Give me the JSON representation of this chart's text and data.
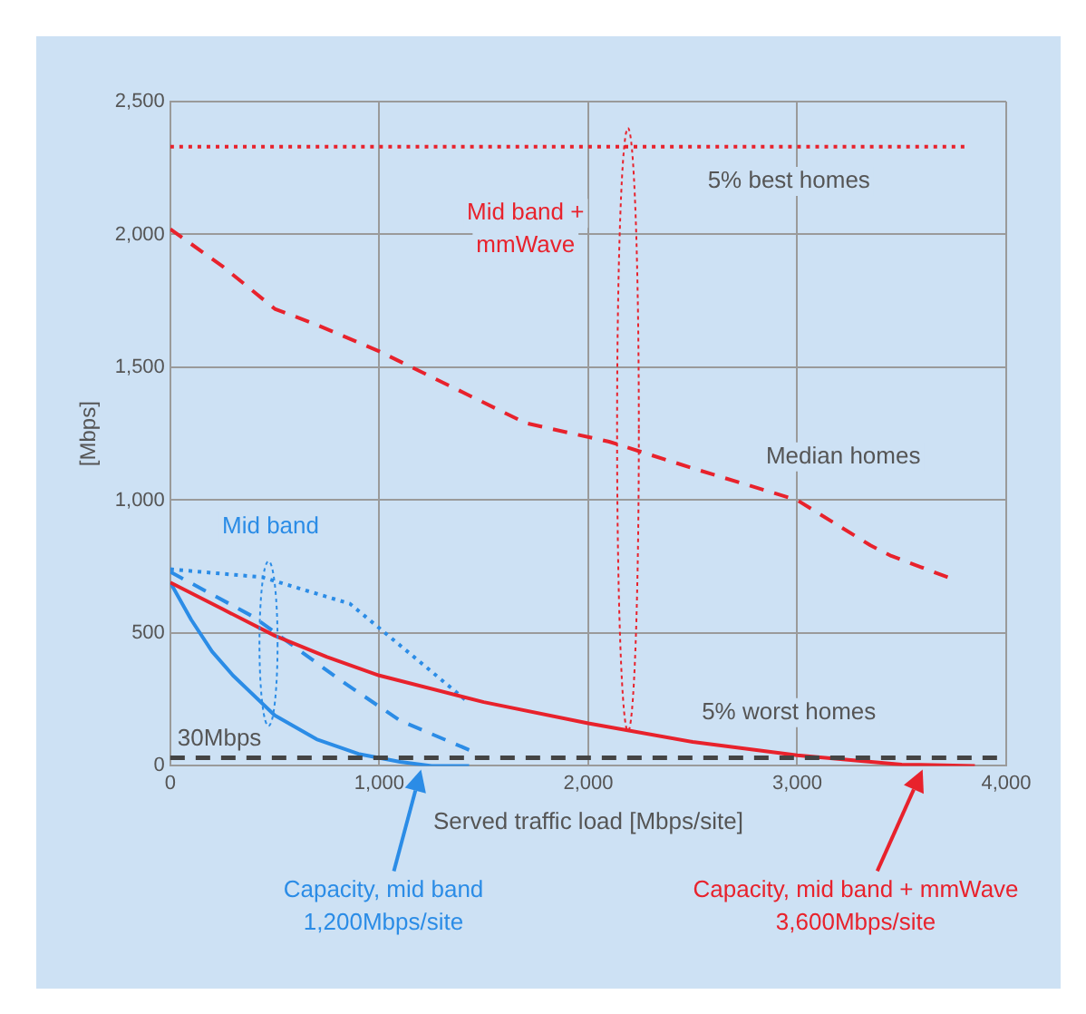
{
  "chart_data": {
    "type": "line",
    "xlabel": "Served traffic load [Mbps/site]",
    "ylabel": "[Mbps]",
    "xlim": [
      0,
      4000
    ],
    "xticks": [
      0,
      {
        "value": 1000,
        "label": "1,000"
      },
      {
        "value": 2000,
        "label": "2,000"
      },
      {
        "value": 3000,
        "label": "3,000"
      },
      {
        "value": 4000,
        "label": "4,000"
      }
    ],
    "ylim": [
      0,
      2500
    ],
    "yticks": [
      0,
      500,
      {
        "value": 1000,
        "label": "1,000"
      },
      {
        "value": 1500,
        "label": "1,500"
      },
      {
        "value": 2000,
        "label": "2,000"
      },
      {
        "value": 2500,
        "label": "2,500"
      }
    ],
    "grid": true,
    "legend": false,
    "marker": "none",
    "series": [
      {
        "color": "#e8222c",
        "line_style": "dotted",
        "x": [
          0,
          3800
        ],
        "values": [
          2330,
          2330
        ]
      },
      {
        "color": "#e8222c",
        "line_style": "dashed",
        "x": [
          0,
          250,
          500,
          700,
          1000,
          1700,
          2100,
          2500,
          3000,
          3350,
          3450,
          3720
        ],
        "values": [
          2020,
          1880,
          1720,
          1660,
          1560,
          1290,
          1220,
          1120,
          1000,
          830,
          790,
          710
        ]
      },
      {
        "color": "#e8222c",
        "line_style": "solid",
        "x": [
          0,
          250,
          500,
          750,
          1000,
          1500,
          2000,
          2500,
          3000,
          3500,
          3850
        ],
        "values": [
          690,
          590,
          490,
          410,
          340,
          240,
          160,
          90,
          40,
          5,
          0
        ]
      },
      {
        "color": "#2b8ce6",
        "line_style": "dotted",
        "x": [
          0,
          440,
          860,
          1120,
          1410
        ],
        "values": [
          740,
          710,
          610,
          440,
          250
        ]
      },
      {
        "color": "#2b8ce6",
        "line_style": "dashed",
        "x": [
          0,
          400,
          800,
          1100,
          1430
        ],
        "values": [
          730,
          560,
          330,
          170,
          60
        ]
      },
      {
        "color": "#2b8ce6",
        "line_style": "solid",
        "x": [
          0,
          100,
          200,
          300,
          500,
          700,
          900,
          1100,
          1250,
          1430
        ],
        "values": [
          690,
          550,
          430,
          340,
          190,
          100,
          45,
          15,
          0,
          0
        ]
      }
    ],
    "ref_lines": [
      {
        "axis": "y",
        "value": 30,
        "label": "30Mbps",
        "color": "#444444",
        "line_style": "dashed"
      }
    ],
    "annotations": [
      "Mid band +\nmmWave",
      "5% best homes",
      "Median homes",
      "5% worst homes",
      "Mid band",
      "Capacity, mid band\n1,200Mbps/site",
      "Capacity, mid band + mmWave\n3,600Mbps/site"
    ]
  }
}
